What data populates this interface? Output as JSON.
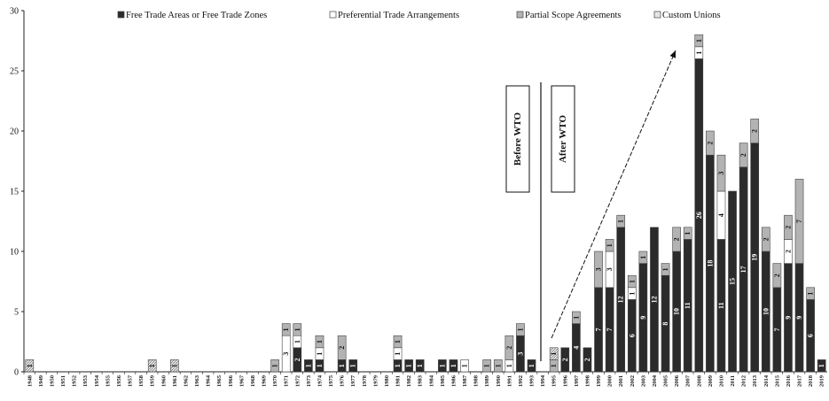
{
  "chart_data": {
    "type": "bar",
    "stacked": true,
    "title": "",
    "xlabel": "",
    "ylabel": "",
    "ylim": [
      0,
      30
    ],
    "yticks": [
      0,
      5,
      10,
      15,
      20,
      25,
      30
    ],
    "grid": false,
    "legend_position": "top",
    "categories": [
      "1948",
      "1949",
      "1950",
      "1951",
      "1952",
      "1953",
      "1954",
      "1955",
      "1956",
      "1957",
      "1958",
      "1959",
      "1960",
      "1961",
      "1962",
      "1963",
      "1964",
      "1965",
      "1966",
      "1967",
      "1968",
      "1969",
      "1970",
      "1971",
      "1972",
      "1973",
      "1974",
      "1975",
      "1976",
      "1977",
      "1978",
      "1979",
      "1980",
      "1981",
      "1982",
      "1983",
      "1984",
      "1985",
      "1986",
      "1987",
      "1988",
      "1989",
      "1990",
      "1991",
      "1992",
      "1993",
      "1994",
      "1995",
      "1996",
      "1997",
      "1998",
      "1999",
      "2000",
      "2001",
      "2002",
      "2003",
      "2004",
      "2005",
      "2006",
      "2007",
      "2008",
      "2009",
      "2010",
      "2011",
      "2012",
      "2013",
      "2014",
      "2015",
      "2016",
      "2017",
      "2018",
      "2019"
    ],
    "series": [
      {
        "name": "Free Trade Areas or Free Trade Zones",
        "color": "#2b2b2b",
        "values": [
          0,
          0,
          0,
          0,
          0,
          0,
          0,
          0,
          0,
          0,
          0,
          0,
          0,
          0,
          0,
          0,
          0,
          0,
          0,
          0,
          0,
          0,
          0,
          0,
          2,
          1,
          1,
          0,
          1,
          1,
          0,
          0,
          0,
          1,
          1,
          1,
          0,
          1,
          1,
          0,
          0,
          0,
          0,
          0,
          3,
          1,
          0,
          0,
          2,
          4,
          2,
          7,
          7,
          12,
          6,
          9,
          12,
          8,
          10,
          11,
          26,
          18,
          11,
          15,
          17,
          19,
          10,
          7,
          9,
          9,
          6,
          1
        ]
      },
      {
        "name": "Preferential Trade Arrangements",
        "color": "#ffffff",
        "values": [
          0,
          0,
          0,
          0,
          0,
          0,
          0,
          0,
          0,
          0,
          0,
          0,
          0,
          0,
          0,
          0,
          0,
          0,
          0,
          0,
          0,
          0,
          0,
          3,
          1,
          0,
          1,
          0,
          0,
          0,
          0,
          0,
          0,
          1,
          0,
          0,
          0,
          0,
          0,
          1,
          0,
          0,
          0,
          1,
          0,
          0,
          0,
          0,
          0,
          0,
          0,
          0,
          3,
          0,
          1,
          0,
          0,
          0,
          0,
          0,
          1,
          0,
          4,
          0,
          0,
          0,
          0,
          0,
          2,
          0,
          0,
          0
        ]
      },
      {
        "name": "Partial Scope Agreements",
        "color": "#b3b3b3",
        "values": [
          0,
          0,
          0,
          0,
          0,
          0,
          0,
          0,
          0,
          0,
          0,
          0,
          0,
          0,
          0,
          0,
          0,
          0,
          0,
          0,
          0,
          0,
          1,
          1,
          1,
          0,
          1,
          0,
          2,
          0,
          0,
          0,
          0,
          1,
          0,
          0,
          0,
          0,
          0,
          0,
          0,
          1,
          1,
          2,
          1,
          0,
          0,
          1,
          0,
          1,
          0,
          3,
          1,
          1,
          1,
          1,
          0,
          1,
          2,
          1,
          1,
          2,
          3,
          0,
          2,
          2,
          2,
          2,
          2,
          7,
          1,
          0
        ]
      },
      {
        "name": "Custom Unions",
        "color": "#e6e6e6",
        "values": [
          1,
          0,
          0,
          0,
          0,
          0,
          0,
          0,
          0,
          0,
          0,
          1,
          0,
          1,
          0,
          0,
          0,
          0,
          0,
          0,
          0,
          0,
          0,
          0,
          0,
          0,
          0,
          0,
          0,
          0,
          0,
          0,
          0,
          0,
          0,
          0,
          0,
          0,
          0,
          0,
          0,
          0,
          0,
          0,
          0,
          0,
          0,
          1,
          0,
          0,
          0,
          0,
          0,
          0,
          0,
          0,
          0,
          0,
          0,
          0,
          0,
          0,
          0,
          0,
          0,
          0,
          0,
          0,
          0,
          0,
          0,
          0
        ]
      }
    ],
    "annotations": [
      {
        "text": "Before WTO",
        "year": "1993"
      },
      {
        "text": "After WTO",
        "year": "1995"
      }
    ]
  }
}
